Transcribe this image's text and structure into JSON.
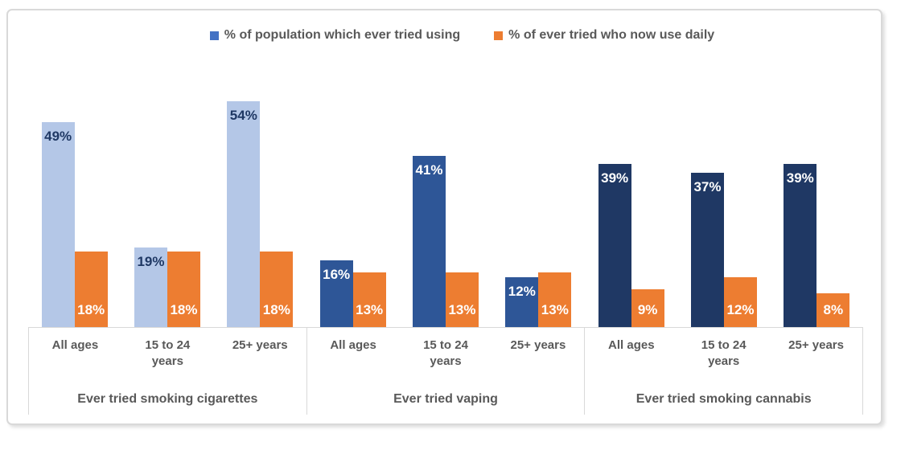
{
  "frame": {
    "background": "#ffffff",
    "border_color": "#d9d9d9",
    "axis_line_color": "#d9d9d9",
    "text_color": "#595959"
  },
  "legend": {
    "position": "top",
    "items": [
      {
        "label": "% of population which ever tried using",
        "swatch_color": "#4472c4"
      },
      {
        "label": "% of ever tried who now use daily",
        "swatch_color": "#ed7d31"
      }
    ]
  },
  "chart_data": {
    "type": "bar",
    "title": "",
    "value_suffix": "%",
    "ylim": [
      0,
      55
    ],
    "gridlines": false,
    "y_axis_visible": false,
    "legend_position": "top",
    "series_names": [
      "% of population which ever tried using",
      "% of ever tried who now use daily"
    ],
    "daily_color": "#ed7d31",
    "daily_label_color": "#ffffff",
    "groups": [
      {
        "label": "Ever tried smoking cigarettes",
        "categories": [
          "All ages",
          "15 to 24 years",
          "25+ years"
        ],
        "ever_tried_values": [
          49,
          19,
          54
        ],
        "daily_values": [
          18,
          18,
          18
        ],
        "ever_tried_color": "#b4c7e7",
        "ever_tried_label_color": "#1f3864"
      },
      {
        "label": "Ever tried vaping",
        "categories": [
          "All ages",
          "15 to 24 years",
          "25+ years"
        ],
        "ever_tried_values": [
          16,
          41,
          12
        ],
        "daily_values": [
          13,
          13,
          13
        ],
        "ever_tried_color": "#2e5697",
        "ever_tried_label_color": "#ffffff"
      },
      {
        "label": "Ever tried smoking cannabis",
        "categories": [
          "All ages",
          "15 to 24 years",
          "25+ years"
        ],
        "ever_tried_values": [
          39,
          37,
          39
        ],
        "daily_values": [
          9,
          12,
          8
        ],
        "ever_tried_color": "#1f3864",
        "ever_tried_label_color": "#ffffff"
      }
    ]
  }
}
